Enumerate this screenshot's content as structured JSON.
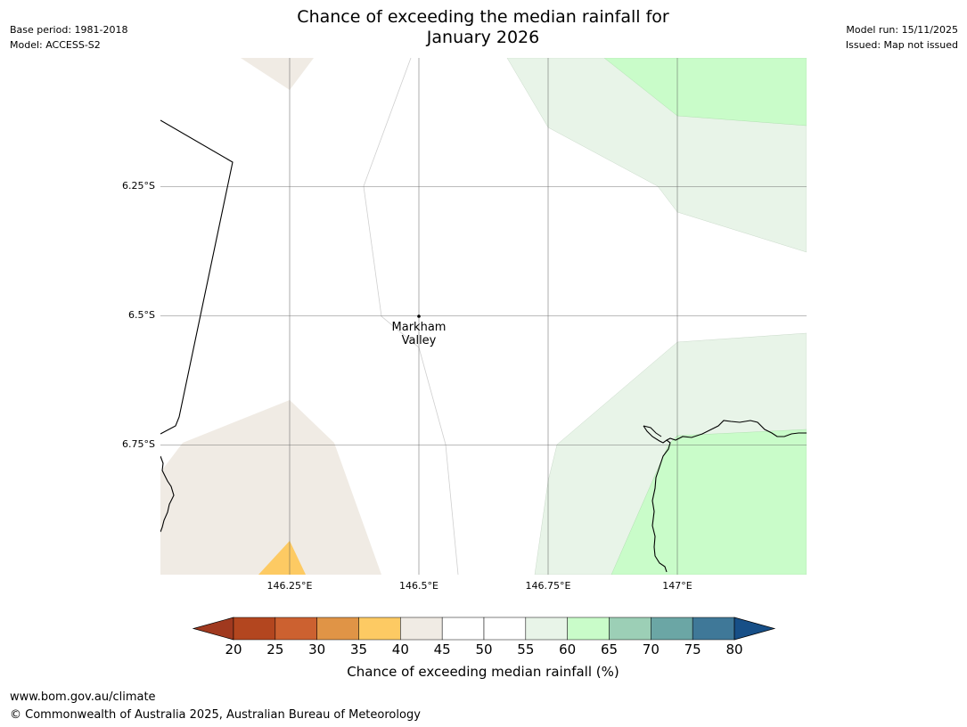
{
  "header": {
    "title_line1": "Chance of exceeding the median rainfall for",
    "title_line2": "January 2026",
    "base_period": "Base period: 1981-2018",
    "model": "Model: ACCESS-S2",
    "model_run": "Model run: 15/11/2025",
    "issued": "Issued: Map not issued"
  },
  "map": {
    "lat_labels": [
      "6.25°S",
      "6.5°S",
      "6.75°S"
    ],
    "lon_labels": [
      "146.25°E",
      "146.5°E",
      "146.75°E",
      "147°E"
    ],
    "place": {
      "name_line1": "Markham",
      "name_line2": "Valley"
    }
  },
  "colorbar": {
    "tick_labels": [
      "20",
      "25",
      "30",
      "35",
      "40",
      "45",
      "50",
      "55",
      "60",
      "65",
      "70",
      "75",
      "80"
    ],
    "colors": [
      "#a0391f",
      "#b3461f",
      "#cc6130",
      "#e09446",
      "#fdca63",
      "#f0ebe4",
      "#ffffff",
      "#ffffff",
      "#e8f4e8",
      "#c9fcc9",
      "#9ccfb6",
      "#6ba6a5",
      "#3f7898",
      "#174f87"
    ],
    "label": "Chance of exceeding median rainfall (%)"
  },
  "footer": {
    "url": "www.bom.gov.au/climate",
    "copyright": "© Commonwealth of Australia 2025, Australian Bureau of Meteorology"
  }
}
